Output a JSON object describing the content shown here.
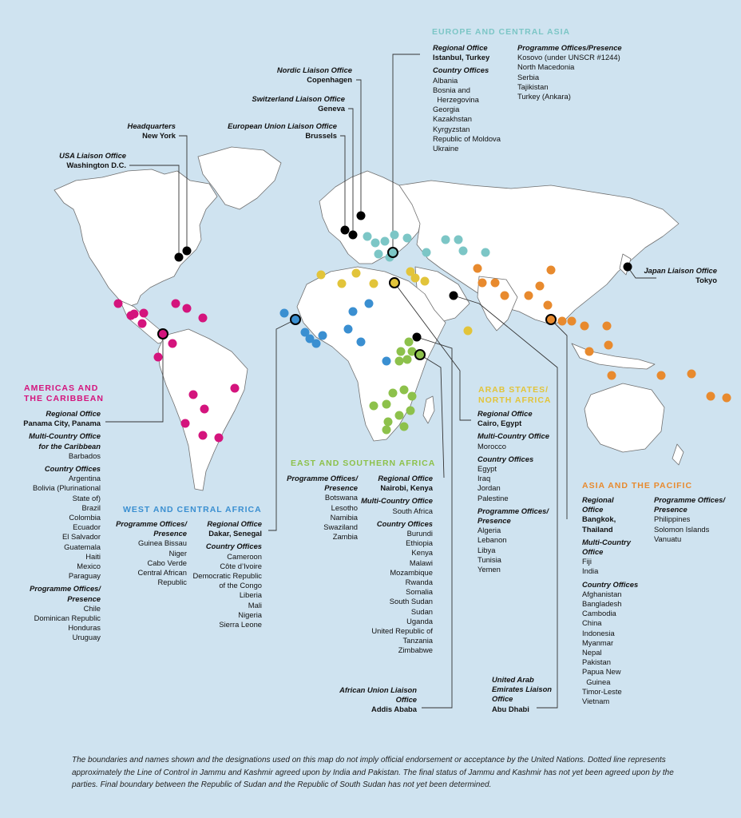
{
  "colors": {
    "background": "#cfe3f0",
    "land": "#ffffff",
    "border": "#6f6f6f",
    "americas": "#d4147d",
    "europe_central_asia": "#7cc6c6",
    "arab_states": "#e2c43a",
    "east_southern_africa": "#8dc14b",
    "west_central_africa": "#3a8fd1",
    "asia_pacific": "#e88a2e",
    "liaison": "#000000"
  },
  "icons": {
    "office_dot": "circle",
    "regional_office_dot": "ringed-circle",
    "liaison_dot": "black-circle"
  },
  "liaison": {
    "nordic": {
      "title": "Nordic Liaison Office",
      "city": "Copenhagen"
    },
    "switzerland": {
      "title": "Switzerland Liaison Office",
      "city": "Geneva"
    },
    "eu": {
      "title": "European Union Liaison Office",
      "city": "Brussels"
    },
    "hq": {
      "title": "Headquarters",
      "city": "New York"
    },
    "usa": {
      "title": "USA Liaison Office",
      "city": "Washington D.C."
    },
    "japan": {
      "title": "Japan Liaison Office",
      "city": "Tokyo"
    },
    "au": {
      "title": "African Union Liaison Office",
      "city": "Addis Ababa"
    },
    "uae": {
      "title1": "United Arab",
      "title2": "Emirates Liaison",
      "title3": "Office",
      "city": "Abu Dhabi"
    }
  },
  "europe": {
    "heading": "EUROPE AND CENTRAL ASIA",
    "regional_label": "Regional Office",
    "regional_city": "Istanbul, Turkey",
    "country_label": "Country Offices",
    "countries": [
      "Albania",
      "Bosnia and",
      "  Herzegovina",
      "Georgia",
      "Kazakhstan",
      "Kyrgyzstan",
      "Republic of Moldova",
      "Ukraine"
    ],
    "programme_label": "Programme Offices/Presence",
    "programme": [
      "Kosovo (under UNSCR #1244)",
      "North Macedonia",
      "Serbia",
      "Tajikistan",
      "Turkey (Ankara)"
    ]
  },
  "americas": {
    "heading1": "AMERICAS AND",
    "heading2": "THE CARIBBEAN",
    "regional_label": "Regional Office",
    "regional_city": "Panama City, Panama",
    "multi_label1": "Multi-Country Office",
    "multi_label2": "for the Caribbean",
    "multi": [
      "Barbados"
    ],
    "country_label": "Country Offices",
    "countries": [
      "Argentina",
      "Bolivia (Plurinational",
      "State of)",
      "Brazil",
      "Colombia",
      "Ecuador",
      "El Salvador",
      "Guatemala",
      "Haiti",
      "Mexico",
      "Paraguay"
    ],
    "programme_label1": "Programme Offices/",
    "programme_label2": "Presence",
    "programme": [
      "Chile",
      "Dominican Republic",
      "Honduras",
      "Uruguay"
    ]
  },
  "wca": {
    "heading": "WEST AND CENTRAL AFRICA",
    "programme_label1": "Programme Offices/",
    "programme_label2": "Presence",
    "programme": [
      "Guinea Bissau",
      "Niger",
      "Cabo Verde",
      "Central African",
      "Republic"
    ],
    "regional_label": "Regional Office",
    "regional_city": "Dakar, Senegal",
    "country_label": "Country Offices",
    "countries": [
      "Cameroon",
      "Côte d’Ivoire",
      "Democratic Republic",
      "of the Congo",
      "Liberia",
      "Mali",
      "Nigeria",
      "Sierra Leone"
    ]
  },
  "esa": {
    "heading": "EAST AND SOUTHERN AFRICA",
    "programme_label1": "Programme Offices/",
    "programme_label2": "Presence",
    "programme": [
      "Botswana",
      "Lesotho",
      "Namibia",
      "Swaziland",
      "Zambia"
    ],
    "regional_label": "Regional Office",
    "regional_city": "Nairobi, Kenya",
    "multi_label": "Multi-Country Office",
    "multi": [
      "South Africa"
    ],
    "country_label": "Country Offices",
    "countries": [
      "Burundi",
      "Ethiopia",
      "Kenya",
      "Malawi",
      "Mozambique",
      "Rwanda",
      "Somalia",
      "South Sudan",
      "Sudan",
      "Uganda",
      "United Republic of",
      "Tanzania",
      "Zimbabwe"
    ]
  },
  "arab": {
    "heading1": "ARAB STATES/",
    "heading2": "NORTH AFRICA",
    "regional_label": "Regional Office",
    "regional_city": "Cairo, Egypt",
    "multi_label": "Multi-Country Office",
    "multi": [
      "Morocco"
    ],
    "country_label": "Country Offices",
    "countries": [
      "Egypt",
      "Iraq",
      "Jordan",
      "Palestine"
    ],
    "programme_label1": "Programme Offices/",
    "programme_label2": "Presence",
    "programme": [
      "Algeria",
      "Lebanon",
      "Libya",
      "Tunisia",
      "Yemen"
    ]
  },
  "asia": {
    "heading": "ASIA AND THE PACIFIC",
    "regional_label1": "Regional",
    "regional_label2": "Office",
    "regional_city1": "Bangkok,",
    "regional_city2": "Thailand",
    "multi_label1": "Multi-Country",
    "multi_label2": "Office",
    "multi": [
      "Fiji",
      "India"
    ],
    "country_label": "Country Offices",
    "countries": [
      "Afghanistan",
      "Bangladesh",
      "Cambodia",
      "China",
      "Indonesia",
      "Myanmar",
      "Nepal",
      "Pakistan",
      "Papua New",
      "  Guinea",
      "Timor-Leste",
      "Vietnam"
    ],
    "programme_label1": "Programme Offices/",
    "programme_label2": "Presence",
    "programme": [
      "Philippines",
      "Solomon Islands",
      "Vanuatu"
    ]
  },
  "disclaimer": "The boundaries and names shown and the designations used on this map do not imply official endorsement or acceptance by the United Nations. Dotted line represents approximately the Line of Control in Jammu and Kashmir agreed upon by India and Pakistan. The final status of Jammu and Kashmir has not yet been agreed upon by the parties. Final boundary between the Republic of Sudan and the Republic of South Sudan has not yet been determined."
}
